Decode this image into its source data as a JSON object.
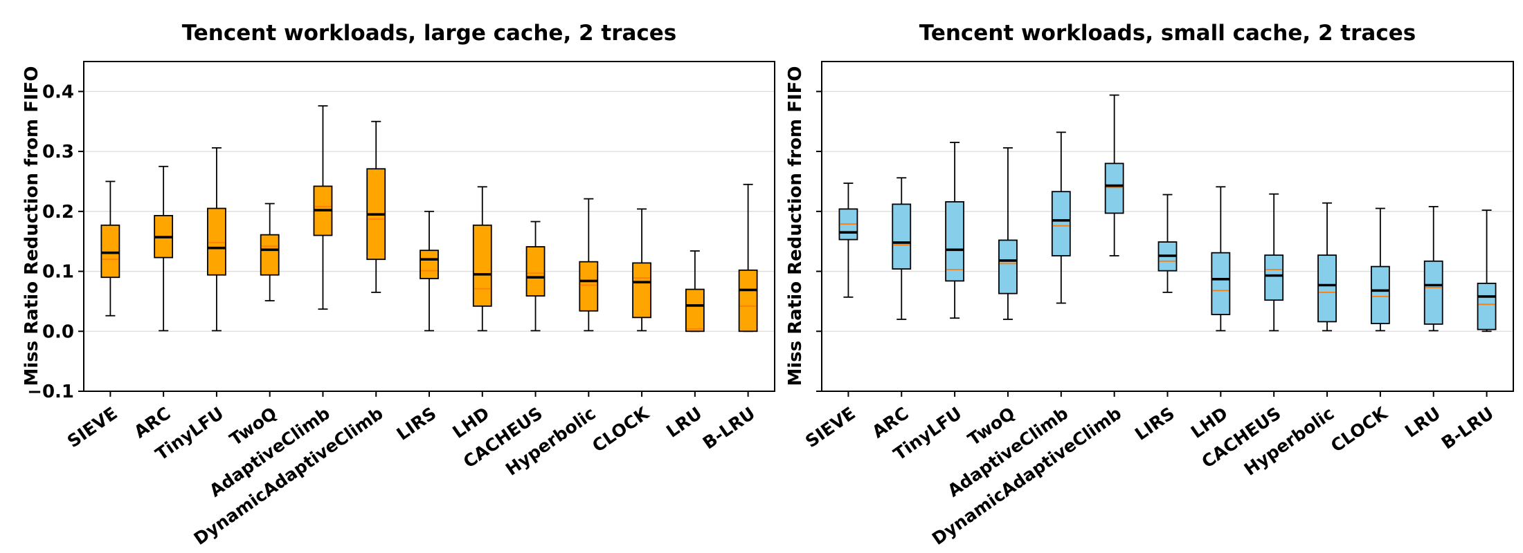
{
  "axes": {
    "background": "#ffffff",
    "grid_color": "#dcdcdc",
    "spine_color": "#000000",
    "median_color": "#000000",
    "mean_color": "#ff7f0e",
    "yticks": [
      {
        "value": 0.4,
        "label": "0.4"
      },
      {
        "value": 0.3,
        "label": "0.3"
      },
      {
        "value": 0.2,
        "label": "0.2"
      },
      {
        "value": 0.1,
        "label": "0.1"
      },
      {
        "value": 0.0,
        "label": "0.0"
      },
      {
        "value": -0.1,
        "label": "−0.1"
      }
    ]
  },
  "chart_data": [
    {
      "type": "boxplot",
      "title": "Tencent workloads, large cache, 2 traces",
      "ylabel": "Miss Ratio Reduction from FIFO",
      "box_color": "#FFA500",
      "show_ytick_labels": true,
      "ylim": [
        -0.1,
        0.45
      ],
      "grid": true,
      "categories": [
        "SIEVE",
        "ARC",
        "TinyLFU",
        "TwoQ",
        "AdaptiveClimb",
        "DynamicAdaptiveClimb",
        "LIRS",
        "LHD",
        "CACHEUS",
        "Hyperbolic",
        "CLOCK",
        "LRU",
        "B-LRU"
      ],
      "series": [
        {
          "name": "SIEVE",
          "whislo": 0.026,
          "q1": 0.09,
          "med": 0.131,
          "mean": 0.12,
          "q3": 0.177,
          "whishi": 0.25
        },
        {
          "name": "ARC",
          "whislo": 0.001,
          "q1": 0.123,
          "med": 0.157,
          "mean": 0.157,
          "q3": 0.193,
          "whishi": 0.275
        },
        {
          "name": "TinyLFU",
          "whislo": 0.001,
          "q1": 0.094,
          "med": 0.139,
          "mean": 0.148,
          "q3": 0.205,
          "whishi": 0.306
        },
        {
          "name": "TwoQ",
          "whislo": 0.051,
          "q1": 0.094,
          "med": 0.136,
          "mean": 0.142,
          "q3": 0.161,
          "whishi": 0.213
        },
        {
          "name": "AdaptiveClimb",
          "whislo": 0.037,
          "q1": 0.16,
          "med": 0.202,
          "mean": 0.208,
          "q3": 0.242,
          "whishi": 0.376
        },
        {
          "name": "DynamicAdaptiveClimb",
          "whislo": 0.065,
          "q1": 0.12,
          "med": 0.195,
          "mean": 0.187,
          "q3": 0.271,
          "whishi": 0.35
        },
        {
          "name": "LIRS",
          "whislo": 0.001,
          "q1": 0.088,
          "med": 0.12,
          "mean": 0.101,
          "q3": 0.135,
          "whishi": 0.2
        },
        {
          "name": "LHD",
          "whislo": 0.001,
          "q1": 0.042,
          "med": 0.095,
          "mean": 0.071,
          "q3": 0.177,
          "whishi": 0.241
        },
        {
          "name": "CACHEUS",
          "whislo": 0.001,
          "q1": 0.059,
          "med": 0.09,
          "mean": 0.097,
          "q3": 0.141,
          "whishi": 0.183
        },
        {
          "name": "Hyperbolic",
          "whislo": 0.001,
          "q1": 0.034,
          "med": 0.084,
          "mean": 0.077,
          "q3": 0.116,
          "whishi": 0.221
        },
        {
          "name": "CLOCK",
          "whislo": 0.001,
          "q1": 0.023,
          "med": 0.082,
          "mean": 0.089,
          "q3": 0.114,
          "whishi": 0.204
        },
        {
          "name": "LRU",
          "whislo": 0.0,
          "q1": 0.0,
          "med": 0.043,
          "mean": 0.004,
          "q3": 0.07,
          "whishi": 0.134
        },
        {
          "name": "B-LRU",
          "whislo": 0.0,
          "q1": 0.0,
          "med": 0.069,
          "mean": 0.042,
          "q3": 0.102,
          "whishi": 0.245
        }
      ]
    },
    {
      "type": "boxplot",
      "title": "Tencent workloads, small cache, 2 traces",
      "ylabel": "Miss Ratio Reduction from FIFO",
      "box_color": "#87CEEB",
      "show_ytick_labels": false,
      "ylim": [
        -0.1,
        0.45
      ],
      "grid": true,
      "categories": [
        "SIEVE",
        "ARC",
        "TinyLFU",
        "TwoQ",
        "AdaptiveClimb",
        "DynamicAdaptiveClimb",
        "LIRS",
        "LHD",
        "CACHEUS",
        "Hyperbolic",
        "CLOCK",
        "LRU",
        "B-LRU"
      ],
      "series": [
        {
          "name": "SIEVE",
          "whislo": 0.057,
          "q1": 0.153,
          "med": 0.165,
          "mean": 0.179,
          "q3": 0.204,
          "whishi": 0.247
        },
        {
          "name": "ARC",
          "whislo": 0.02,
          "q1": 0.104,
          "med": 0.148,
          "mean": 0.144,
          "q3": 0.212,
          "whishi": 0.256
        },
        {
          "name": "TinyLFU",
          "whislo": 0.022,
          "q1": 0.084,
          "med": 0.136,
          "mean": 0.103,
          "q3": 0.216,
          "whishi": 0.315
        },
        {
          "name": "TwoQ",
          "whislo": 0.02,
          "q1": 0.063,
          "med": 0.118,
          "mean": 0.113,
          "q3": 0.152,
          "whishi": 0.306
        },
        {
          "name": "AdaptiveClimb",
          "whislo": 0.047,
          "q1": 0.126,
          "med": 0.185,
          "mean": 0.176,
          "q3": 0.233,
          "whishi": 0.332
        },
        {
          "name": "DynamicAdaptiveClimb",
          "whislo": 0.126,
          "q1": 0.197,
          "med": 0.243,
          "mean": 0.24,
          "q3": 0.28,
          "whishi": 0.394
        },
        {
          "name": "LIRS",
          "whislo": 0.065,
          "q1": 0.101,
          "med": 0.126,
          "mean": 0.117,
          "q3": 0.149,
          "whishi": 0.228
        },
        {
          "name": "LHD",
          "whislo": 0.001,
          "q1": 0.028,
          "med": 0.087,
          "mean": 0.068,
          "q3": 0.131,
          "whishi": 0.241
        },
        {
          "name": "CACHEUS",
          "whislo": 0.001,
          "q1": 0.052,
          "med": 0.093,
          "mean": 0.103,
          "q3": 0.127,
          "whishi": 0.229
        },
        {
          "name": "Hyperbolic",
          "whislo": 0.001,
          "q1": 0.016,
          "med": 0.077,
          "mean": 0.065,
          "q3": 0.127,
          "whishi": 0.214
        },
        {
          "name": "CLOCK",
          "whislo": 0.001,
          "q1": 0.013,
          "med": 0.068,
          "mean": 0.058,
          "q3": 0.108,
          "whishi": 0.205
        },
        {
          "name": "LRU",
          "whislo": 0.001,
          "q1": 0.012,
          "med": 0.077,
          "mean": 0.073,
          "q3": 0.117,
          "whishi": 0.208
        },
        {
          "name": "B-LRU",
          "whislo": 0.0,
          "q1": 0.003,
          "med": 0.058,
          "mean": 0.045,
          "q3": 0.08,
          "whishi": 0.202
        }
      ]
    }
  ]
}
